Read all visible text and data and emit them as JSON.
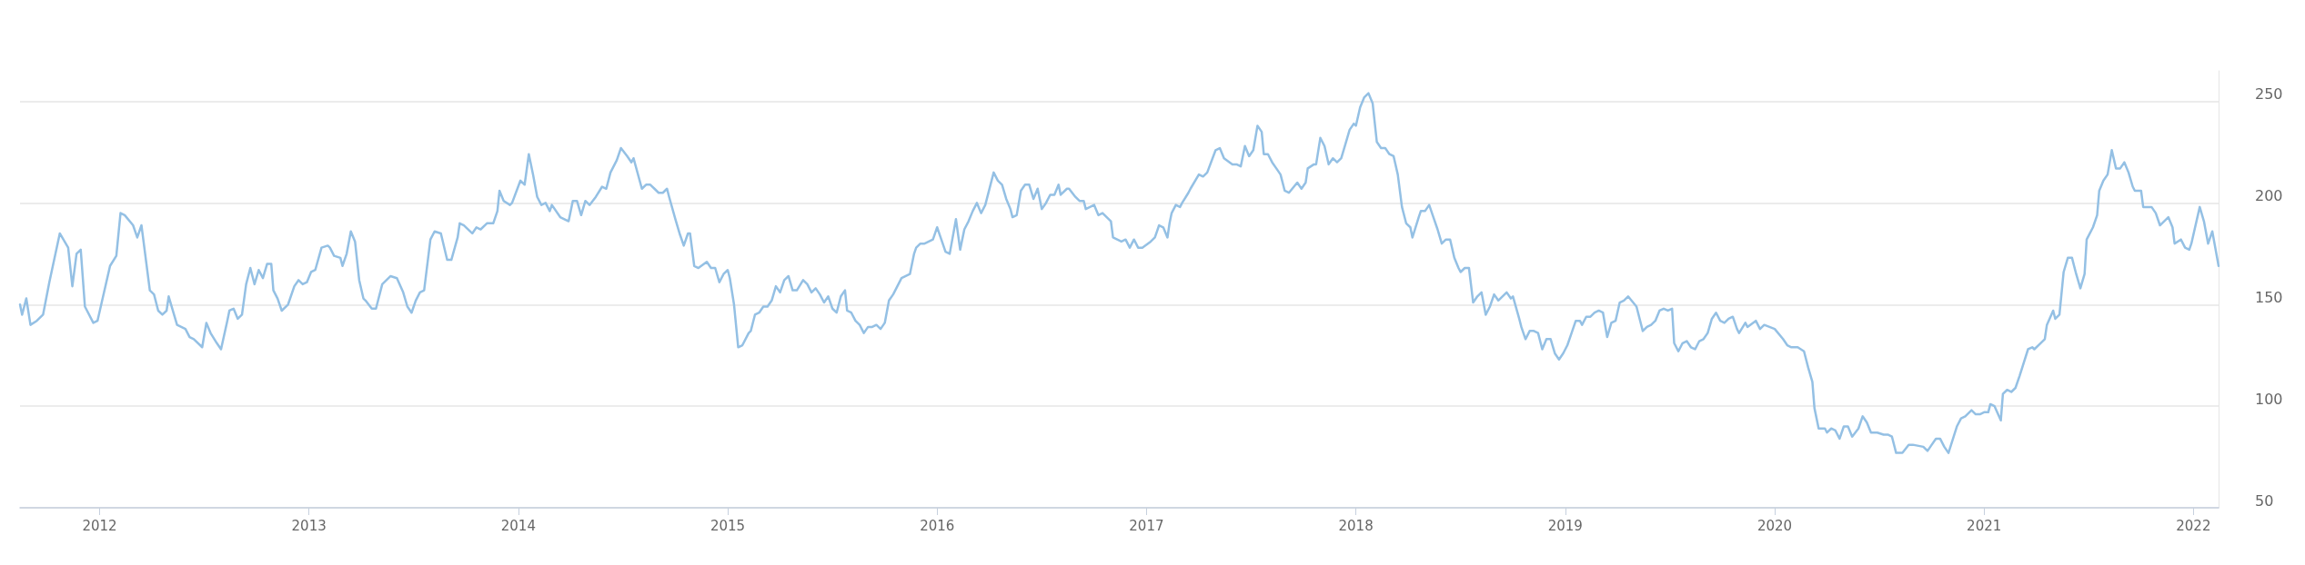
{
  "chart_data": {
    "type": "line",
    "xlim": [
      2011.62,
      2022.12
    ],
    "xticks": [
      2012,
      2013,
      2014,
      2015,
      2016,
      2017,
      2018,
      2019,
      2020,
      2021,
      2022
    ],
    "ylim": [
      50,
      265
    ],
    "yticks": [
      50,
      100,
      150,
      200,
      250
    ],
    "grid": "y",
    "marker": "none",
    "line_style": "solid",
    "series": [
      {
        "color": "#94c0e4",
        "x": [
          2011.62,
          2011.63,
          2011.65,
          2011.67,
          2011.7,
          2011.73,
          2011.76,
          2011.81,
          2011.85,
          2011.87,
          2011.89,
          2011.91,
          2011.93,
          2011.97,
          2011.99,
          2012.05,
          2012.08,
          2012.1,
          2012.12,
          2012.16,
          2012.18,
          2012.2,
          2012.24,
          2012.26,
          2012.28,
          2012.3,
          2012.32,
          2012.33,
          2012.37,
          2012.41,
          2012.43,
          2012.45,
          2012.49,
          2012.51,
          2012.53,
          2012.56,
          2012.58,
          2012.61,
          2012.62,
          2012.64,
          2012.66,
          2012.68,
          2012.7,
          2012.72,
          2012.74,
          2012.76,
          2012.78,
          2012.8,
          2012.82,
          2012.83,
          2012.85,
          2012.87,
          2012.9,
          2012.93,
          2012.95,
          2012.97,
          2012.99,
          2013.01,
          2013.03,
          2013.06,
          2013.09,
          2013.1,
          2013.12,
          2013.15,
          2013.16,
          2013.18,
          2013.2,
          2013.22,
          2013.24,
          2013.26,
          2013.27,
          2013.3,
          2013.32,
          2013.35,
          2013.38,
          2013.39,
          2013.42,
          2013.45,
          2013.47,
          2013.49,
          2013.51,
          2013.53,
          2013.55,
          2013.58,
          2013.6,
          2013.63,
          2013.66,
          2013.68,
          2013.71,
          2013.72,
          2013.74,
          2013.78,
          2013.8,
          2013.82,
          2013.85,
          2013.88,
          2013.9,
          2013.91,
          2013.93,
          2013.96,
          2013.97,
          2014.01,
          2014.03,
          2014.05,
          2014.07,
          2014.09,
          2014.11,
          2014.13,
          2014.15,
          2014.16,
          2014.2,
          2014.24,
          2014.26,
          2014.28,
          2014.3,
          2014.32,
          2014.34,
          2014.37,
          2014.4,
          2014.42,
          2014.44,
          2014.47,
          2014.49,
          2014.52,
          2014.54,
          2014.55,
          2014.59,
          2014.61,
          2014.63,
          2014.65,
          2014.67,
          2014.69,
          2014.71,
          2014.72,
          2014.75,
          2014.77,
          2014.79,
          2014.81,
          2014.82,
          2014.84,
          2014.86,
          2014.9,
          2014.92,
          2014.94,
          2014.96,
          2014.98,
          2015.0,
          2015.01,
          2015.03,
          2015.05,
          2015.07,
          2015.1,
          2015.11,
          2015.13,
          2015.15,
          2015.17,
          2015.19,
          2015.21,
          2015.23,
          2015.25,
          2015.27,
          2015.29,
          2015.31,
          2015.33,
          2015.36,
          2015.38,
          2015.4,
          2015.42,
          2015.44,
          2015.46,
          2015.48,
          2015.5,
          2015.52,
          2015.54,
          2015.56,
          2015.57,
          2015.59,
          2015.61,
          2015.63,
          2015.65,
          2015.67,
          2015.69,
          2015.71,
          2015.73,
          2015.75,
          2015.77,
          2015.79,
          2015.81,
          2015.83,
          2015.85,
          2015.87,
          2015.89,
          2015.9,
          2015.92,
          2015.94,
          2015.96,
          2015.98,
          2016.0,
          2016.02,
          2016.04,
          2016.06,
          2016.09,
          2016.11,
          2016.13,
          2016.15,
          2016.17,
          2016.19,
          2016.21,
          2016.23,
          2016.27,
          2016.29,
          2016.31,
          2016.33,
          2016.35,
          2016.36,
          2016.38,
          2016.4,
          2016.42,
          2016.44,
          2016.46,
          2016.48,
          2016.5,
          2016.52,
          2016.54,
          2016.56,
          2016.58,
          2016.59,
          2016.62,
          2016.63,
          2016.66,
          2016.68,
          2016.7,
          2016.71,
          2016.73,
          2016.75,
          2016.77,
          2016.79,
          2016.81,
          2016.83,
          2016.84,
          2016.86,
          2016.88,
          2016.9,
          2016.92,
          2016.94,
          2016.96,
          2016.98,
          2017.02,
          2017.04,
          2017.06,
          2017.08,
          2017.1,
          2017.11,
          2017.12,
          2017.14,
          2017.16,
          2017.17,
          2017.2,
          2017.21,
          2017.25,
          2017.27,
          2017.29,
          2017.33,
          2017.35,
          2017.37,
          2017.41,
          2017.43,
          2017.45,
          2017.47,
          2017.49,
          2017.51,
          2017.53,
          2017.55,
          2017.56,
          2017.58,
          2017.6,
          2017.62,
          2017.64,
          2017.66,
          2017.68,
          2017.72,
          2017.74,
          2017.76,
          2017.77,
          2017.8,
          2017.81,
          2017.83,
          2017.85,
          2017.87,
          2017.89,
          2017.91,
          2017.93,
          2017.95,
          2017.97,
          2017.99,
          2018.0,
          2018.02,
          2018.04,
          2018.06,
          2018.08,
          2018.1,
          2018.12,
          2018.14,
          2018.16,
          2018.18,
          2018.2,
          2018.22,
          2018.24,
          2018.26,
          2018.27,
          2018.3,
          2018.31,
          2018.33,
          2018.35,
          2018.37,
          2018.39,
          2018.41,
          2018.43,
          2018.45,
          2018.47,
          2018.49,
          2018.5,
          2018.52,
          2018.54,
          2018.56,
          2018.58,
          2018.6,
          2018.62,
          2018.64,
          2018.66,
          2018.68,
          2018.7,
          2018.72,
          2018.74,
          2018.75,
          2018.78,
          2018.79,
          2018.81,
          2018.83,
          2018.85,
          2018.87,
          2018.89,
          2018.91,
          2018.93,
          2018.95,
          2018.97,
          2018.99,
          2019.01,
          2019.03,
          2019.05,
          2019.07,
          2019.08,
          2019.1,
          2019.12,
          2019.14,
          2019.16,
          2019.18,
          2019.2,
          2019.22,
          2019.24,
          2019.26,
          2019.28,
          2019.3,
          2019.34,
          2019.37,
          2019.39,
          2019.41,
          2019.43,
          2019.45,
          2019.47,
          2019.49,
          2019.51,
          2019.52,
          2019.54,
          2019.56,
          2019.58,
          2019.6,
          2019.62,
          2019.64,
          2019.66,
          2019.68,
          2019.7,
          2019.72,
          2019.74,
          2019.76,
          2019.78,
          2019.8,
          2019.82,
          2019.83,
          2019.86,
          2019.87,
          2019.91,
          2019.93,
          2019.95,
          2020.0,
          2020.04,
          2020.06,
          2020.08,
          2020.11,
          2020.14,
          2020.16,
          2020.18,
          2020.19,
          2020.21,
          2020.24,
          2020.25,
          2020.27,
          2020.29,
          2020.31,
          2020.33,
          2020.35,
          2020.37,
          2020.4,
          2020.42,
          2020.44,
          2020.46,
          2020.49,
          2020.52,
          2020.54,
          2020.56,
          2020.58,
          2020.59,
          2020.61,
          2020.64,
          2020.66,
          2020.71,
          2020.73,
          2020.75,
          2020.77,
          2020.79,
          2020.81,
          2020.83,
          2020.87,
          2020.89,
          2020.91,
          2020.94,
          2020.96,
          2020.98,
          2021.0,
          2021.02,
          2021.03,
          2021.05,
          2021.08,
          2021.09,
          2021.11,
          2021.13,
          2021.15,
          2021.17,
          2021.21,
          2021.23,
          2021.24,
          2021.27,
          2021.29,
          2021.3,
          2021.33,
          2021.34,
          2021.36,
          2021.38,
          2021.4,
          2021.42,
          2021.44,
          2021.46,
          2021.48,
          2021.49,
          2021.52,
          2021.54,
          2021.55,
          2021.57,
          2021.59,
          2021.61,
          2021.63,
          2021.65,
          2021.67,
          2021.69,
          2021.71,
          2021.72,
          2021.75,
          2021.76,
          2021.78,
          2021.8,
          2021.82,
          2021.84,
          2021.86,
          2021.88,
          2021.9,
          2021.91,
          2021.94,
          2021.96,
          2021.98,
          2021.99,
          2022.03,
          2022.05,
          2022.07,
          2022.09,
          2022.12
        ],
        "values": [
          150,
          145,
          153,
          140,
          142,
          145,
          161,
          185,
          178,
          159,
          175,
          177,
          149,
          141,
          142,
          169,
          174,
          195,
          194,
          189,
          183,
          189,
          157,
          155,
          147,
          145,
          147,
          154,
          140,
          138,
          134,
          133,
          129,
          141,
          136,
          131,
          128,
          142,
          147,
          148,
          143,
          145,
          160,
          168,
          160,
          167,
          163,
          170,
          170,
          157,
          153,
          147,
          150,
          159,
          162,
          160,
          161,
          166,
          167,
          178,
          179,
          178,
          174,
          173,
          169,
          175,
          186,
          181,
          162,
          153,
          152,
          148,
          148,
          160,
          163,
          164,
          163,
          156,
          149,
          146,
          152,
          156,
          157,
          182,
          186,
          185,
          172,
          172,
          183,
          190,
          189,
          185,
          188,
          187,
          190,
          190,
          196,
          206,
          201,
          199,
          200,
          211,
          209,
          224,
          214,
          203,
          199,
          200,
          196,
          199,
          193,
          191,
          201,
          201,
          194,
          201,
          199,
          203,
          208,
          207,
          215,
          221,
          227,
          223,
          220,
          222,
          207,
          209,
          209,
          207,
          205,
          205,
          207,
          203,
          192,
          185,
          179,
          185,
          185,
          169,
          168,
          171,
          168,
          168,
          161,
          165,
          167,
          163,
          150,
          129,
          130,
          136,
          137,
          145,
          146,
          149,
          149,
          152,
          159,
          156,
          162,
          164,
          157,
          157,
          162,
          160,
          156,
          158,
          155,
          151,
          154,
          148,
          146,
          154,
          157,
          147,
          146,
          142,
          140,
          136,
          139,
          139,
          140,
          138,
          141,
          152,
          155,
          159,
          163,
          164,
          165,
          175,
          178,
          180,
          180,
          181,
          182,
          188,
          182,
          176,
          175,
          192,
          177,
          187,
          191,
          196,
          200,
          195,
          199,
          215,
          211,
          209,
          202,
          197,
          193,
          194,
          206,
          209,
          209,
          202,
          207,
          197,
          200,
          204,
          204,
          209,
          204,
          207,
          207,
          203,
          201,
          201,
          197,
          198,
          199,
          194,
          195,
          193,
          191,
          183,
          182,
          181,
          182,
          178,
          182,
          178,
          178,
          181,
          183,
          189,
          188,
          183,
          190,
          195,
          199,
          198,
          200,
          205,
          207,
          214,
          213,
          215,
          226,
          227,
          222,
          219,
          219,
          218,
          228,
          223,
          226,
          238,
          235,
          224,
          224,
          220,
          217,
          214,
          206,
          205,
          210,
          207,
          210,
          217,
          219,
          219,
          232,
          228,
          219,
          222,
          220,
          222,
          229,
          236,
          239,
          238,
          247,
          252,
          254,
          249,
          230,
          227,
          227,
          224,
          223,
          214,
          198,
          190,
          188,
          183,
          193,
          196,
          196,
          199,
          193,
          187,
          180,
          182,
          182,
          173,
          168,
          166,
          168,
          168,
          151,
          154,
          156,
          145,
          149,
          155,
          152,
          154,
          156,
          153,
          154,
          143,
          139,
          133,
          137,
          137,
          136,
          128,
          133,
          133,
          126,
          123,
          126,
          130,
          136,
          142,
          142,
          140,
          144,
          144,
          146,
          147,
          146,
          134,
          141,
          142,
          151,
          152,
          154,
          149,
          137,
          139,
          140,
          142,
          147,
          148,
          147,
          148,
          131,
          127,
          131,
          132,
          129,
          128,
          132,
          133,
          136,
          143,
          146,
          142,
          141,
          143,
          144,
          138,
          136,
          141,
          139,
          142,
          138,
          140,
          138,
          133,
          130,
          129,
          129,
          127,
          119,
          112,
          99,
          89,
          89,
          87,
          89,
          88,
          84,
          90,
          90,
          85,
          89,
          95,
          92,
          87,
          87,
          86,
          86,
          85,
          77,
          77,
          77,
          81,
          81,
          80,
          78,
          81,
          84,
          84,
          80,
          77,
          90,
          94,
          95,
          98,
          96,
          96,
          97,
          97,
          101,
          100,
          93,
          106,
          108,
          107,
          109,
          115,
          128,
          129,
          128,
          131,
          133,
          140,
          147,
          143,
          145,
          166,
          173,
          173,
          165,
          158,
          165,
          182,
          188,
          194,
          206,
          211,
          214,
          226,
          217,
          217,
          220,
          215,
          208,
          206,
          206,
          198,
          198,
          198,
          195,
          189,
          191,
          193,
          188,
          180,
          182,
          178,
          177,
          180,
          198,
          191,
          180,
          186,
          169
        ]
      }
    ]
  }
}
